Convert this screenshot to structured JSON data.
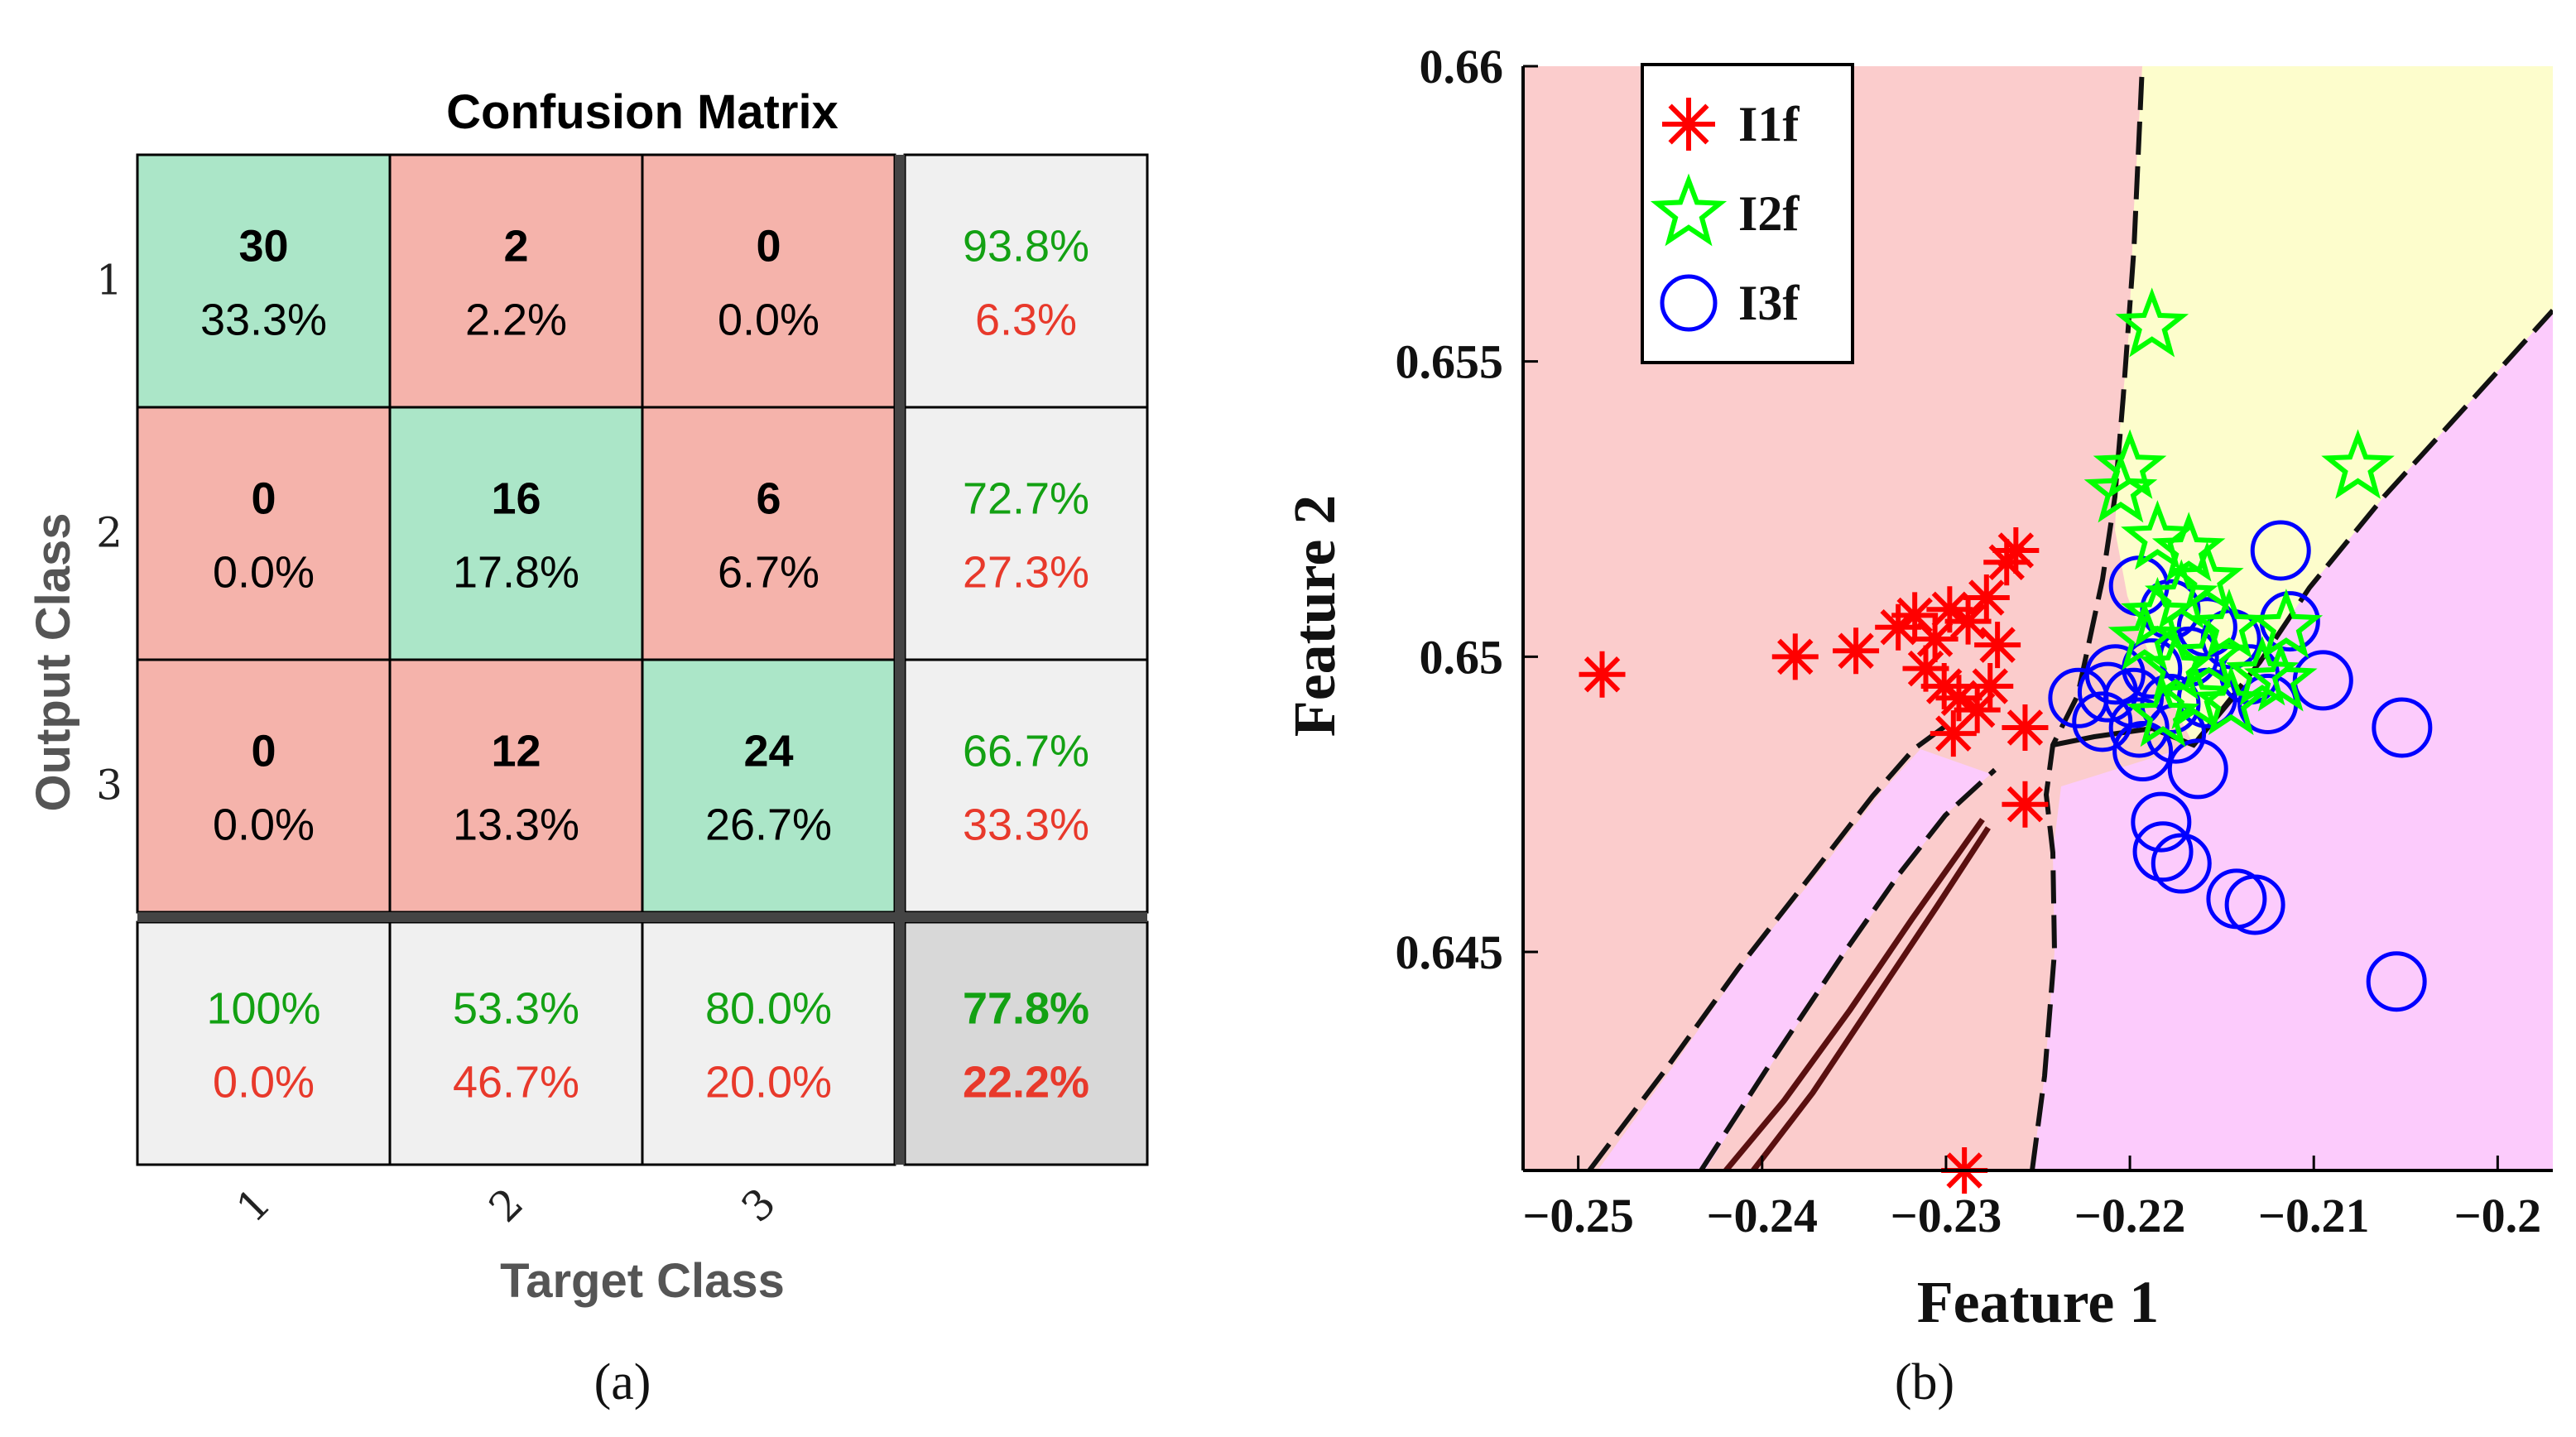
{
  "chart_data": [
    {
      "type": "table",
      "subtitle": "(a)",
      "title": "Confusion Matrix",
      "xlabel": "Target Class",
      "ylabel": "Output Class",
      "classes": [
        "1",
        "2",
        "3"
      ],
      "counts": [
        [
          30,
          2,
          0
        ],
        [
          0,
          16,
          6
        ],
        [
          0,
          12,
          24
        ]
      ],
      "percents": [
        [
          "33.3%",
          "2.2%",
          "0.0%"
        ],
        [
          "0.0%",
          "17.8%",
          "6.7%"
        ],
        [
          "0.0%",
          "13.3%",
          "26.7%"
        ]
      ],
      "row_summary": [
        [
          "93.8%",
          "6.3%"
        ],
        [
          "72.7%",
          "27.3%"
        ],
        [
          "66.7%",
          "33.3%"
        ]
      ],
      "column_summary": [
        [
          "100%",
          "0.0%"
        ],
        [
          "53.3%",
          "46.7%"
        ],
        [
          "80.0%",
          "20.0%"
        ]
      ],
      "overall": [
        "77.8%",
        "22.2%"
      ],
      "colors": {
        "correct": "#abe6c8",
        "incorrect": "#f5b3ab",
        "summary": "#f0f0f0",
        "overall": "#d8d8d8",
        "good_text": "#13a113",
        "bad_text": "#e8392b"
      }
    },
    {
      "type": "scatter",
      "subtitle": "(b)",
      "xlabel": "Feature 1",
      "ylabel": "Feature 2",
      "xlim": [
        -0.253,
        -0.197
      ],
      "ylim": [
        0.6413,
        0.66
      ],
      "xticks": [
        -0.25,
        -0.24,
        -0.23,
        -0.22,
        -0.21,
        -0.2
      ],
      "xtick_labels": [
        "−0.25",
        "−0.24",
        "−0.23",
        "−0.22",
        "−0.21",
        "−0.2"
      ],
      "yticks": [
        0.645,
        0.65,
        0.655,
        0.66
      ],
      "ytick_labels": [
        "0.645",
        "0.65",
        "0.655",
        "0.66"
      ],
      "region_colors": {
        "I1f": "#fbcccc",
        "I2f": "#fdfdcc",
        "I3f": "#fccbfc"
      },
      "legend_position": "top-left",
      "series": [
        {
          "name": "I1f",
          "marker": "asterisk",
          "color": "#ff0000",
          "points": [
            [
              -0.2487,
              0.6497
            ],
            [
              -0.2382,
              0.65
            ],
            [
              -0.2349,
              0.6501
            ],
            [
              -0.2326,
              0.6505
            ],
            [
              -0.2317,
              0.6507
            ],
            [
              -0.2306,
              0.6503
            ],
            [
              -0.2298,
              0.6508
            ],
            [
              -0.2288,
              0.6506
            ],
            [
              -0.2278,
              0.651
            ],
            [
              -0.2267,
              0.6516
            ],
            [
              -0.2262,
              0.6518
            ],
            [
              -0.2311,
              0.6498
            ],
            [
              -0.2301,
              0.6495
            ],
            [
              -0.2293,
              0.6493
            ],
            [
              -0.2283,
              0.6491
            ],
            [
              -0.2276,
              0.6495
            ],
            [
              -0.2272,
              0.6502
            ],
            [
              -0.2296,
              0.6487
            ],
            [
              -0.2257,
              0.6488
            ],
            [
              -0.2257,
              0.6475
            ],
            [
              -0.229,
              0.6413
            ]
          ]
        },
        {
          "name": "I2f",
          "marker": "star",
          "color": "#00ff00",
          "points": [
            [
              -0.2188,
              0.6556
            ],
            [
              -0.2076,
              0.6532
            ],
            [
              -0.22,
              0.6532
            ],
            [
              -0.2205,
              0.6528
            ],
            [
              -0.2185,
              0.652
            ],
            [
              -0.2168,
              0.6518
            ],
            [
              -0.2158,
              0.6513
            ],
            [
              -0.2172,
              0.651
            ],
            [
              -0.2185,
              0.6507
            ],
            [
              -0.2146,
              0.6505
            ],
            [
              -0.2192,
              0.6503
            ],
            [
              -0.2157,
              0.65
            ],
            [
              -0.2175,
              0.6498
            ],
            [
              -0.2128,
              0.6497
            ],
            [
              -0.2165,
              0.6493
            ],
            [
              -0.2182,
              0.649
            ],
            [
              -0.2145,
              0.6492
            ],
            [
              -0.2115,
              0.6505
            ],
            [
              -0.2118,
              0.6496
            ]
          ]
        },
        {
          "name": "I3f",
          "marker": "circle",
          "color": "#0000ff",
          "points": [
            [
              -0.2118,
              0.6518
            ],
            [
              -0.2195,
              0.6512
            ],
            [
              -0.2178,
              0.6508
            ],
            [
              -0.2158,
              0.6505
            ],
            [
              -0.2145,
              0.6503
            ],
            [
              -0.2113,
              0.6506
            ],
            [
              -0.2168,
              0.65
            ],
            [
              -0.2188,
              0.6498
            ],
            [
              -0.2208,
              0.6497
            ],
            [
              -0.2135,
              0.6497
            ],
            [
              -0.2095,
              0.6496
            ],
            [
              -0.2228,
              0.6493
            ],
            [
              -0.2212,
              0.6494
            ],
            [
              -0.2198,
              0.6493
            ],
            [
              -0.2178,
              0.6492
            ],
            [
              -0.2158,
              0.6493
            ],
            [
              -0.2125,
              0.6492
            ],
            [
              -0.2215,
              0.6489
            ],
            [
              -0.2195,
              0.6488
            ],
            [
              -0.2175,
              0.6487
            ],
            [
              -0.2052,
              0.6488
            ],
            [
              -0.2193,
              0.6484
            ],
            [
              -0.2163,
              0.6481
            ],
            [
              -0.2183,
              0.6472
            ],
            [
              -0.2182,
              0.6467
            ],
            [
              -0.2172,
              0.6465
            ],
            [
              -0.2142,
              0.6459
            ],
            [
              -0.2132,
              0.6458
            ],
            [
              -0.2055,
              0.6445
            ]
          ]
        }
      ]
    }
  ]
}
